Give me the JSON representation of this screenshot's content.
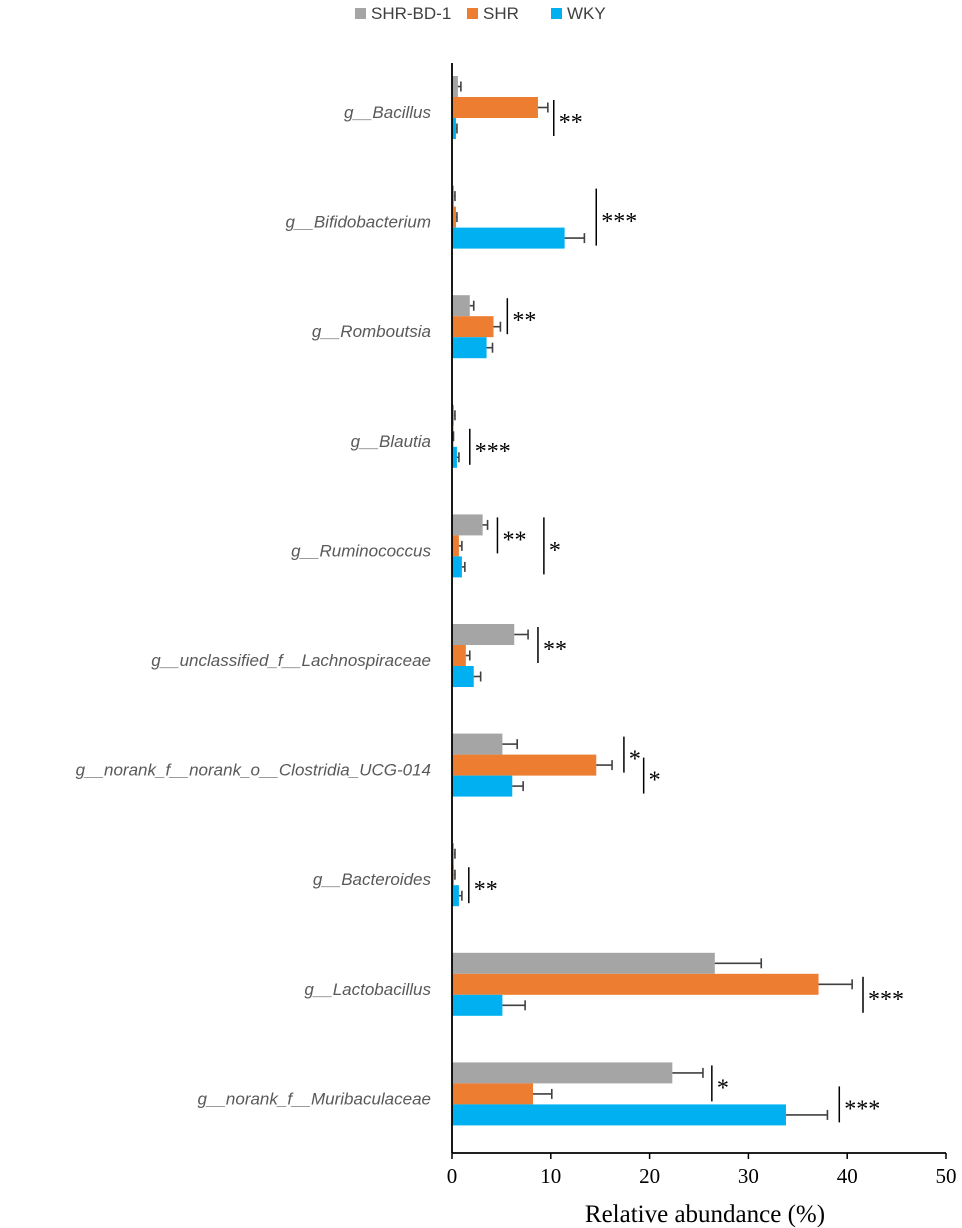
{
  "chart_data": {
    "type": "bar",
    "orientation": "horizontal",
    "categories": [
      "g__Bacillus",
      "g__Bifidobacterium",
      "g__Romboutsia",
      "g__Blautia",
      "g__Ruminococcus",
      "g__unclassified_f__Lachnospiraceae",
      "g__norank_f__norank_o__Clostridia_UCG-014",
      "g__Bacteroides",
      "g__Lactobacillus",
      "g__norank_f__Muribaculaceae"
    ],
    "series": [
      {
        "name": "SHR-BD-1",
        "color": "#A5A5A5",
        "values": [
          0.6,
          0.2,
          1.8,
          0.2,
          3.1,
          6.3,
          5.1,
          0.2,
          26.6,
          22.3
        ],
        "errors": [
          0.3,
          0.1,
          0.4,
          0.1,
          0.5,
          1.4,
          1.5,
          0.1,
          4.7,
          3.1
        ]
      },
      {
        "name": "SHR",
        "color": "#ED7D31",
        "values": [
          8.7,
          0.4,
          4.2,
          0.1,
          0.7,
          1.4,
          14.6,
          0.2,
          37.1,
          8.2
        ],
        "errors": [
          1.0,
          0.1,
          0.7,
          0.05,
          0.3,
          0.4,
          1.6,
          0.1,
          3.4,
          1.9
        ]
      },
      {
        "name": "WKY",
        "color": "#00B0F0",
        "values": [
          0.4,
          11.4,
          3.5,
          0.5,
          1.0,
          2.2,
          6.1,
          0.7,
          5.1,
          33.8
        ],
        "errors": [
          0.1,
          2.0,
          0.6,
          0.2,
          0.3,
          0.7,
          1.1,
          0.3,
          2.3,
          4.2
        ]
      }
    ],
    "xlabel": "Relative abundance (%)",
    "xlim": [
      0,
      50
    ],
    "xticks": [
      "0",
      "10",
      "20",
      "30",
      "40",
      "50"
    ],
    "legend_position": "top",
    "grid": false,
    "significance": [
      {
        "category": 0,
        "x": 10.3,
        "from": "SHR",
        "to": "WKY",
        "label": "**"
      },
      {
        "category": 1,
        "x": 14.6,
        "from": "SHR-BD-1",
        "to": "WKY",
        "label": "***"
      },
      {
        "category": 2,
        "x": 5.6,
        "from": "SHR-BD-1",
        "to": "SHR",
        "label": "**"
      },
      {
        "category": 3,
        "x": 1.8,
        "from": "SHR",
        "to": "WKY",
        "label": "***"
      },
      {
        "category": 4,
        "x": 4.6,
        "from": "SHR-BD-1",
        "to": "SHR",
        "label": "**"
      },
      {
        "category": 4,
        "x": 9.3,
        "from": "SHR-BD-1",
        "to": "WKY",
        "label": "*"
      },
      {
        "category": 5,
        "x": 8.7,
        "from": "SHR-BD-1",
        "to": "SHR",
        "label": "**"
      },
      {
        "category": 6,
        "x": 17.4,
        "from": "SHR-BD-1",
        "to": "SHR",
        "label": "*"
      },
      {
        "category": 6,
        "x": 19.4,
        "from": "SHR",
        "to": "WKY",
        "label": "*"
      },
      {
        "category": 7,
        "x": 1.7,
        "from": "SHR",
        "to": "WKY",
        "label": "**"
      },
      {
        "category": 8,
        "x": 41.6,
        "from": "SHR",
        "to": "WKY",
        "label": "***"
      },
      {
        "category": 9,
        "x": 26.3,
        "from": "SHR-BD-1",
        "to": "SHR",
        "label": "*"
      },
      {
        "category": 9,
        "x": 39.2,
        "from": "SHR",
        "to": "WKY",
        "label": "***"
      }
    ]
  }
}
